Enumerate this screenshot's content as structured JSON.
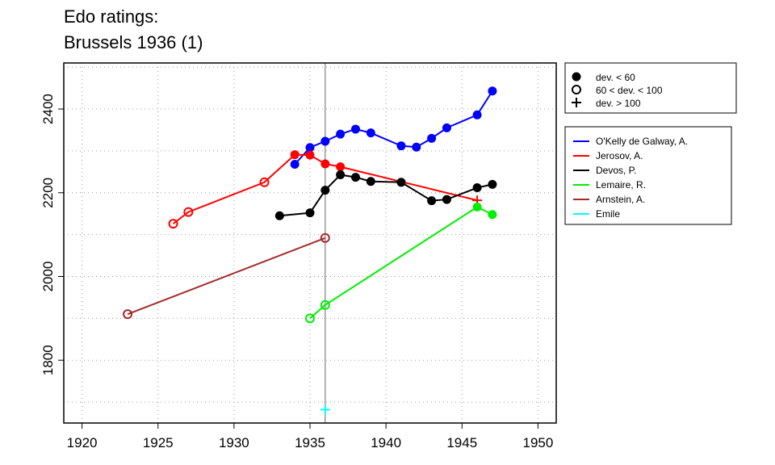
{
  "chart_data": {
    "type": "line",
    "title": [
      "Edo ratings:",
      "Brussels 1936 (1)"
    ],
    "xlim": [
      1918.8,
      1951.2
    ],
    "ylim": [
      1650,
      2510
    ],
    "xticks": [
      1920,
      1925,
      1930,
      1935,
      1940,
      1945,
      1950
    ],
    "yticks": [
      1800,
      2000,
      2200,
      2400
    ],
    "grid": true,
    "vline_x": 1936,
    "legend_markers": {
      "position": "top-right",
      "entries": [
        {
          "label": "dev. < 60",
          "marker": "filled"
        },
        {
          "label": "60 < dev. < 100",
          "marker": "open"
        },
        {
          "label": "dev. > 100",
          "marker": "plus"
        }
      ]
    },
    "legend_series_position": "right",
    "series": [
      {
        "name": "O'Kelly de Galway, A.",
        "color": "#0000ff",
        "points": [
          [
            1934,
            2268,
            "filled"
          ],
          [
            1935,
            2308,
            "filled"
          ],
          [
            1936,
            2323,
            "filled"
          ],
          [
            1937,
            2340,
            "filled"
          ],
          [
            1938,
            2352,
            "filled"
          ],
          [
            1939,
            2343,
            "filled"
          ],
          [
            1941,
            2312,
            "filled"
          ],
          [
            1942,
            2309,
            "filled"
          ],
          [
            1943,
            2330,
            "filled"
          ],
          [
            1944,
            2355,
            "filled"
          ],
          [
            1946,
            2386,
            "filled"
          ],
          [
            1947,
            2443,
            "filled"
          ]
        ]
      },
      {
        "name": "Jerosov, A.",
        "color": "#ff0000",
        "points": [
          [
            1926,
            2126,
            "open"
          ],
          [
            1927,
            2154,
            "open"
          ],
          [
            1932,
            2225,
            "open"
          ],
          [
            1934,
            2291,
            "filled"
          ],
          [
            1935,
            2290,
            "filled"
          ],
          [
            1936,
            2269,
            "filled"
          ],
          [
            1937,
            2262,
            "filled"
          ],
          [
            1946,
            2182,
            "plus"
          ]
        ]
      },
      {
        "name": "Devos, P.",
        "color": "#000000",
        "points": [
          [
            1933,
            2145,
            "filled"
          ],
          [
            1935,
            2152,
            "filled"
          ],
          [
            1936,
            2206,
            "filled"
          ],
          [
            1937,
            2243,
            "filled"
          ],
          [
            1938,
            2237,
            "filled"
          ],
          [
            1939,
            2227,
            "filled"
          ],
          [
            1941,
            2225,
            "filled"
          ],
          [
            1943,
            2181,
            "filled"
          ],
          [
            1944,
            2184,
            "filled"
          ],
          [
            1946,
            2212,
            "filled"
          ],
          [
            1947,
            2220,
            "filled"
          ]
        ]
      },
      {
        "name": "Lemaire, R.",
        "color": "#00ee00",
        "points": [
          [
            1935,
            1900,
            "open"
          ],
          [
            1936,
            1932,
            "open"
          ],
          [
            1946,
            2166,
            "filled"
          ],
          [
            1947,
            2148,
            "filled"
          ]
        ]
      },
      {
        "name": "Arnstein, A.",
        "color": "#a52a2a",
        "points": [
          [
            1923,
            1910,
            "open"
          ],
          [
            1936,
            2092,
            "open"
          ]
        ]
      },
      {
        "name": "Emile",
        "color": "#00ffff",
        "points": [
          [
            1936,
            1682,
            "plus"
          ]
        ]
      }
    ]
  }
}
